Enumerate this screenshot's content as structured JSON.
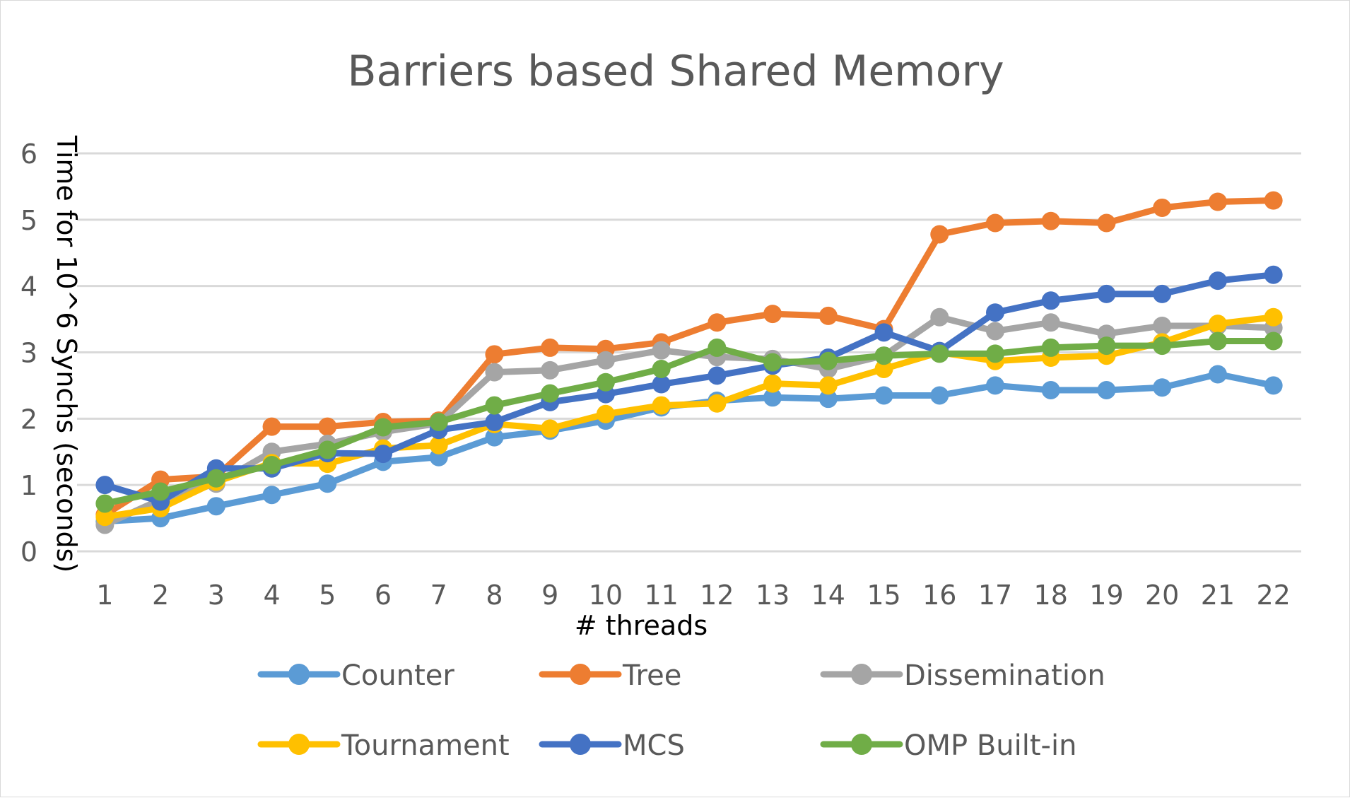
{
  "chart_data": {
    "type": "line",
    "title": "Barriers based Shared Memory",
    "xlabel": "# threads",
    "ylabel": "Time for 10^6 Synchs (seconds)",
    "ylim": [
      0,
      6
    ],
    "yticks": [
      "0",
      "1",
      "2",
      "3",
      "4",
      "5",
      "6"
    ],
    "grid": true,
    "legend_position": "bottom",
    "categories": [
      "1",
      "2",
      "3",
      "4",
      "5",
      "6",
      "7",
      "8",
      "9",
      "10",
      "11",
      "12",
      "13",
      "14",
      "15",
      "16",
      "17",
      "18",
      "19",
      "20",
      "21",
      "22"
    ],
    "series": [
      {
        "name": "Counter",
        "color": "#5B9BD5",
        "values": [
          0.45,
          0.5,
          0.68,
          0.85,
          1.02,
          1.35,
          1.42,
          1.72,
          1.82,
          1.97,
          2.17,
          2.27,
          2.32,
          2.3,
          2.35,
          2.35,
          2.5,
          2.43,
          2.43,
          2.47,
          2.67,
          2.5
        ]
      },
      {
        "name": "Tree",
        "color": "#ED7D31",
        "values": [
          0.55,
          1.08,
          1.13,
          1.88,
          1.88,
          1.95,
          1.97,
          2.97,
          3.07,
          3.05,
          3.15,
          3.45,
          3.58,
          3.55,
          3.35,
          4.78,
          4.95,
          4.98,
          4.95,
          5.18,
          5.27,
          5.29
        ]
      },
      {
        "name": "Dissemination",
        "color": "#A5A5A5",
        "values": [
          0.4,
          0.78,
          1.02,
          1.5,
          1.62,
          1.8,
          1.93,
          2.7,
          2.73,
          2.88,
          3.03,
          2.93,
          2.9,
          2.75,
          2.95,
          3.53,
          3.32,
          3.45,
          3.28,
          3.4,
          3.4,
          3.37
        ]
      },
      {
        "name": "Tournament",
        "color": "#FFC000",
        "values": [
          0.52,
          0.65,
          1.05,
          1.33,
          1.32,
          1.55,
          1.6,
          1.92,
          1.85,
          2.07,
          2.2,
          2.23,
          2.53,
          2.5,
          2.75,
          3.0,
          2.87,
          2.92,
          2.95,
          3.15,
          3.43,
          3.53
        ]
      },
      {
        "name": "MCS",
        "color": "#4472C4",
        "values": [
          1.0,
          0.75,
          1.25,
          1.25,
          1.48,
          1.47,
          1.83,
          1.95,
          2.25,
          2.37,
          2.52,
          2.65,
          2.8,
          2.92,
          3.3,
          3.02,
          3.6,
          3.78,
          3.88,
          3.88,
          4.08,
          4.17
        ]
      },
      {
        "name": "OMP Built-in",
        "color": "#70AD47",
        "values": [
          0.72,
          0.9,
          1.1,
          1.3,
          1.53,
          1.87,
          1.95,
          2.2,
          2.38,
          2.55,
          2.75,
          3.07,
          2.85,
          2.87,
          2.95,
          2.98,
          2.98,
          3.07,
          3.1,
          3.1,
          3.17,
          3.17
        ]
      }
    ]
  }
}
